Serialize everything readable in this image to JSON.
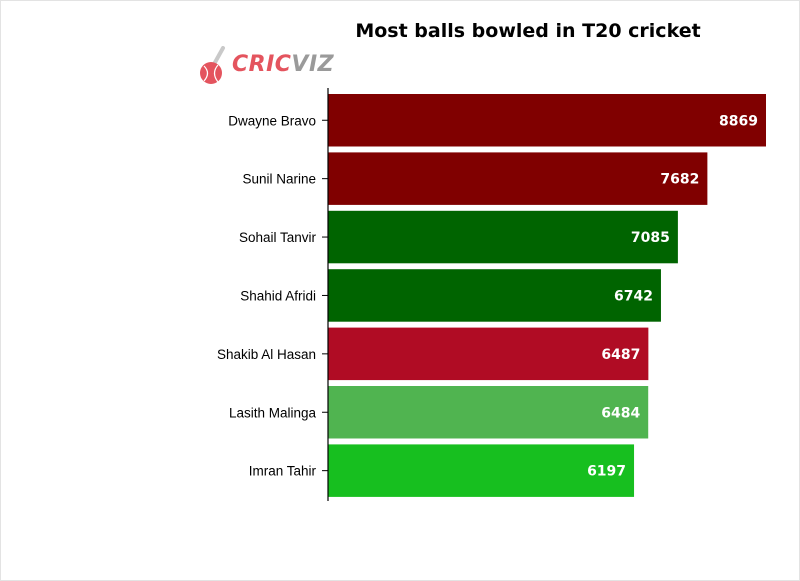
{
  "logo": {
    "part1": "CRIC",
    "part2": "VIZ"
  },
  "chart_data": {
    "type": "bar",
    "orientation": "horizontal",
    "title": "Most balls bowled in T20 cricket",
    "categories": [
      "Dwayne Bravo",
      "Sunil Narine",
      "Sohail Tanvir",
      "Shahid Afridi",
      "Shakib Al Hasan",
      "Lasith Malinga",
      "Imran Tahir"
    ],
    "values": [
      8869,
      7682,
      7085,
      6742,
      6487,
      6484,
      6197
    ],
    "colors": [
      "#800000",
      "#800000",
      "#006400",
      "#006400",
      "#b00c24",
      "#50b450",
      "#17bf1f"
    ],
    "data_labels": [
      "8869",
      "7682",
      "7085",
      "6742",
      "6487",
      "6484",
      "6197"
    ],
    "xlim": [
      0,
      8869
    ],
    "grid": false,
    "legend": "none"
  }
}
